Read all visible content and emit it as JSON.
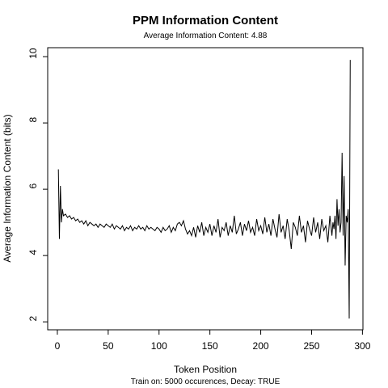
{
  "chart_data": {
    "type": "line",
    "title": "PPM Information Content",
    "subtitle": "Average Information Content: 4.88",
    "x_label": "Token Position",
    "y_label": "Average Information Content (bits)",
    "caption": "Train on: 5000 occurences, Decay: TRUE",
    "color": "#000000",
    "xlim": [
      -9.5,
      300.5
    ],
    "ylim": [
      1.76,
      10.27
    ],
    "xticks": [
      0,
      50,
      100,
      150,
      200,
      250,
      300
    ],
    "yticks": [
      2,
      4,
      6,
      8,
      10
    ],
    "x": [
      1,
      2,
      3,
      4,
      5,
      6,
      8,
      10,
      12,
      14,
      16,
      18,
      20,
      22,
      24,
      26,
      28,
      30,
      32,
      34,
      36,
      38,
      40,
      42,
      44,
      46,
      48,
      50,
      52,
      54,
      56,
      58,
      60,
      62,
      64,
      66,
      68,
      70,
      72,
      74,
      76,
      78,
      80,
      82,
      84,
      86,
      88,
      90,
      92,
      94,
      96,
      98,
      100,
      102,
      104,
      106,
      108,
      110,
      112,
      114,
      116,
      118,
      120,
      122,
      124,
      126,
      128,
      130,
      132,
      134,
      136,
      138,
      140,
      142,
      144,
      146,
      148,
      150,
      152,
      154,
      156,
      158,
      160,
      162,
      164,
      166,
      168,
      170,
      172,
      174,
      176,
      178,
      180,
      182,
      184,
      186,
      188,
      190,
      192,
      194,
      196,
      198,
      200,
      202,
      204,
      206,
      208,
      210,
      212,
      214,
      216,
      218,
      220,
      222,
      224,
      226,
      228,
      230,
      232,
      234,
      236,
      238,
      240,
      242,
      244,
      246,
      248,
      250,
      252,
      254,
      256,
      258,
      260,
      262,
      264,
      266,
      268,
      270,
      271,
      272,
      273,
      274,
      275,
      276,
      277,
      278,
      279,
      280,
      281,
      282,
      283,
      284,
      285,
      286,
      287,
      288
    ],
    "values": [
      6.6,
      4.5,
      6.1,
      5.0,
      5.4,
      5.2,
      5.25,
      5.15,
      5.2,
      5.1,
      5.15,
      5.05,
      5.1,
      5.0,
      5.05,
      4.95,
      5.05,
      4.9,
      5.0,
      4.95,
      4.9,
      4.95,
      4.85,
      4.95,
      4.9,
      4.85,
      4.95,
      4.9,
      4.85,
      4.95,
      4.8,
      4.9,
      4.85,
      4.8,
      4.9,
      4.75,
      4.85,
      4.8,
      4.9,
      4.75,
      4.85,
      4.8,
      4.9,
      4.8,
      4.85,
      4.75,
      4.9,
      4.8,
      4.85,
      4.8,
      4.75,
      4.85,
      4.8,
      4.7,
      4.85,
      4.75,
      4.8,
      4.9,
      4.7,
      4.85,
      4.75,
      4.95,
      5.0,
      4.9,
      5.05,
      4.8,
      4.65,
      4.75,
      4.6,
      4.85,
      4.55,
      4.9,
      4.7,
      5.0,
      4.6,
      4.85,
      4.7,
      4.95,
      4.6,
      4.9,
      4.7,
      5.1,
      4.55,
      4.85,
      4.75,
      5.0,
      4.6,
      4.9,
      4.7,
      5.2,
      4.65,
      4.8,
      5.0,
      4.6,
      4.95,
      4.75,
      5.05,
      4.7,
      4.85,
      4.6,
      5.1,
      4.75,
      4.9,
      4.65,
      5.15,
      4.7,
      4.95,
      4.6,
      5.1,
      4.8,
      4.55,
      5.25,
      4.7,
      4.9,
      4.5,
      5.1,
      4.75,
      4.2,
      5.0,
      4.85,
      4.6,
      5.2,
      4.7,
      4.9,
      4.4,
      5.05,
      4.8,
      4.6,
      5.15,
      4.7,
      5.0,
      4.5,
      5.1,
      4.75,
      4.9,
      4.4,
      5.2,
      4.6,
      5.0,
      4.8,
      5.2,
      4.5,
      5.7,
      4.9,
      5.4,
      4.7,
      5.0,
      7.1,
      4.6,
      6.4,
      3.7,
      5.2,
      5.0,
      5.4,
      2.1,
      9.9
    ]
  }
}
